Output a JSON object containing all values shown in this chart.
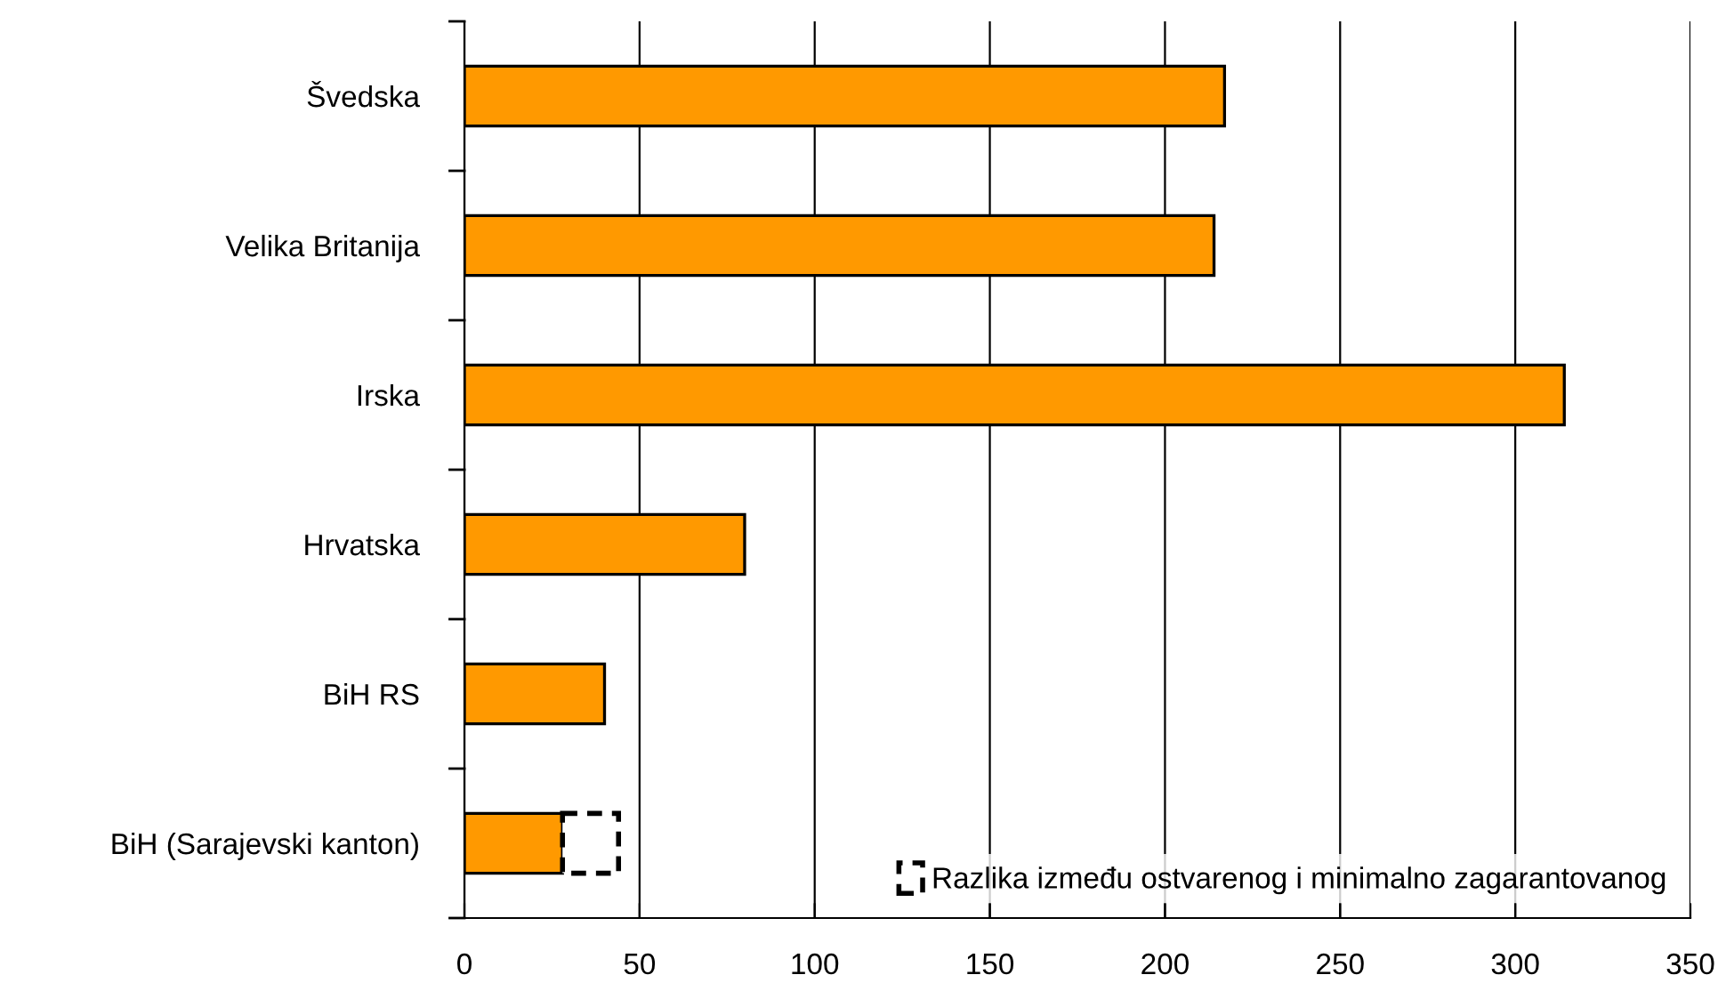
{
  "chart_data": {
    "type": "bar",
    "orientation": "horizontal",
    "stacked": true,
    "categories": [
      "Švedska",
      "Velika Britanija",
      "Irska",
      "Hrvatska",
      "BiH RS",
      "BiH (Sarajevski kanton)"
    ],
    "series": [
      {
        "color": "#ff9900",
        "values": [
          217,
          214,
          314,
          80,
          40,
          28
        ]
      },
      {
        "name": "Razlika između ostvarenog i minimalno zagarantovanog",
        "color": "#ffffff",
        "line_style": "dashed",
        "values": [
          null,
          null,
          null,
          null,
          null,
          16
        ]
      }
    ],
    "xlim": [
      0,
      350
    ],
    "xticks": [
      0,
      50,
      100,
      150,
      200,
      250,
      300,
      350
    ],
    "grid": "x",
    "legend": "bottom right"
  }
}
